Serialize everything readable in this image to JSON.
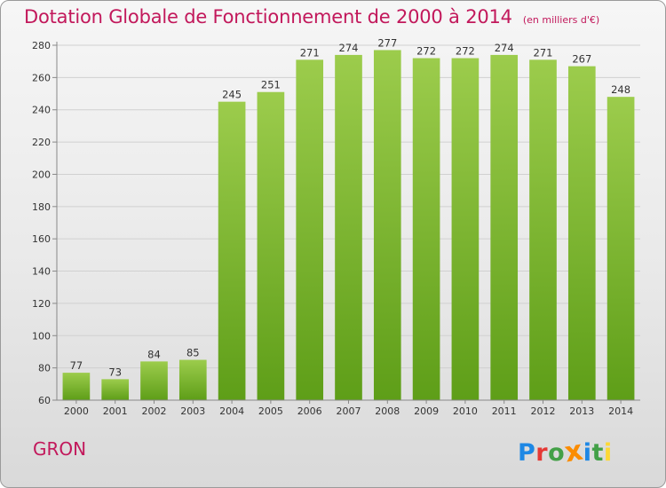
{
  "header": {
    "title": "Dotation Globale de Fonctionnement de 2000 à 2014",
    "unit": "(en milliers d'€)"
  },
  "footer": {
    "place": "GRON",
    "logo_letters": [
      "P",
      "r",
      "o",
      "x",
      "i",
      "t",
      "i"
    ]
  },
  "colors": {
    "title": "#c2185b",
    "bar_top": "#9ccc4c",
    "bar_bottom": "#5e9e18",
    "logo": [
      "#1e88e5",
      "#e53935",
      "#43a047",
      "#fb8c00",
      "#1e88e5",
      "#43a047",
      "#fdd835"
    ]
  },
  "chart_data": {
    "type": "bar",
    "title": "Dotation Globale de Fonctionnement de 2000 à 2014",
    "xlabel": "",
    "ylabel": "",
    "categories": [
      "2000",
      "2001",
      "2002",
      "2003",
      "2004",
      "2005",
      "2006",
      "2007",
      "2008",
      "2009",
      "2010",
      "2011",
      "2012",
      "2013",
      "2014"
    ],
    "values": [
      77,
      73,
      84,
      85,
      245,
      251,
      271,
      274,
      277,
      272,
      272,
      274,
      271,
      267,
      248
    ],
    "ylim": [
      60,
      280
    ],
    "yticks": [
      60,
      80,
      100,
      120,
      140,
      160,
      180,
      200,
      220,
      240,
      260,
      280
    ],
    "grid": true,
    "legend": "none"
  }
}
